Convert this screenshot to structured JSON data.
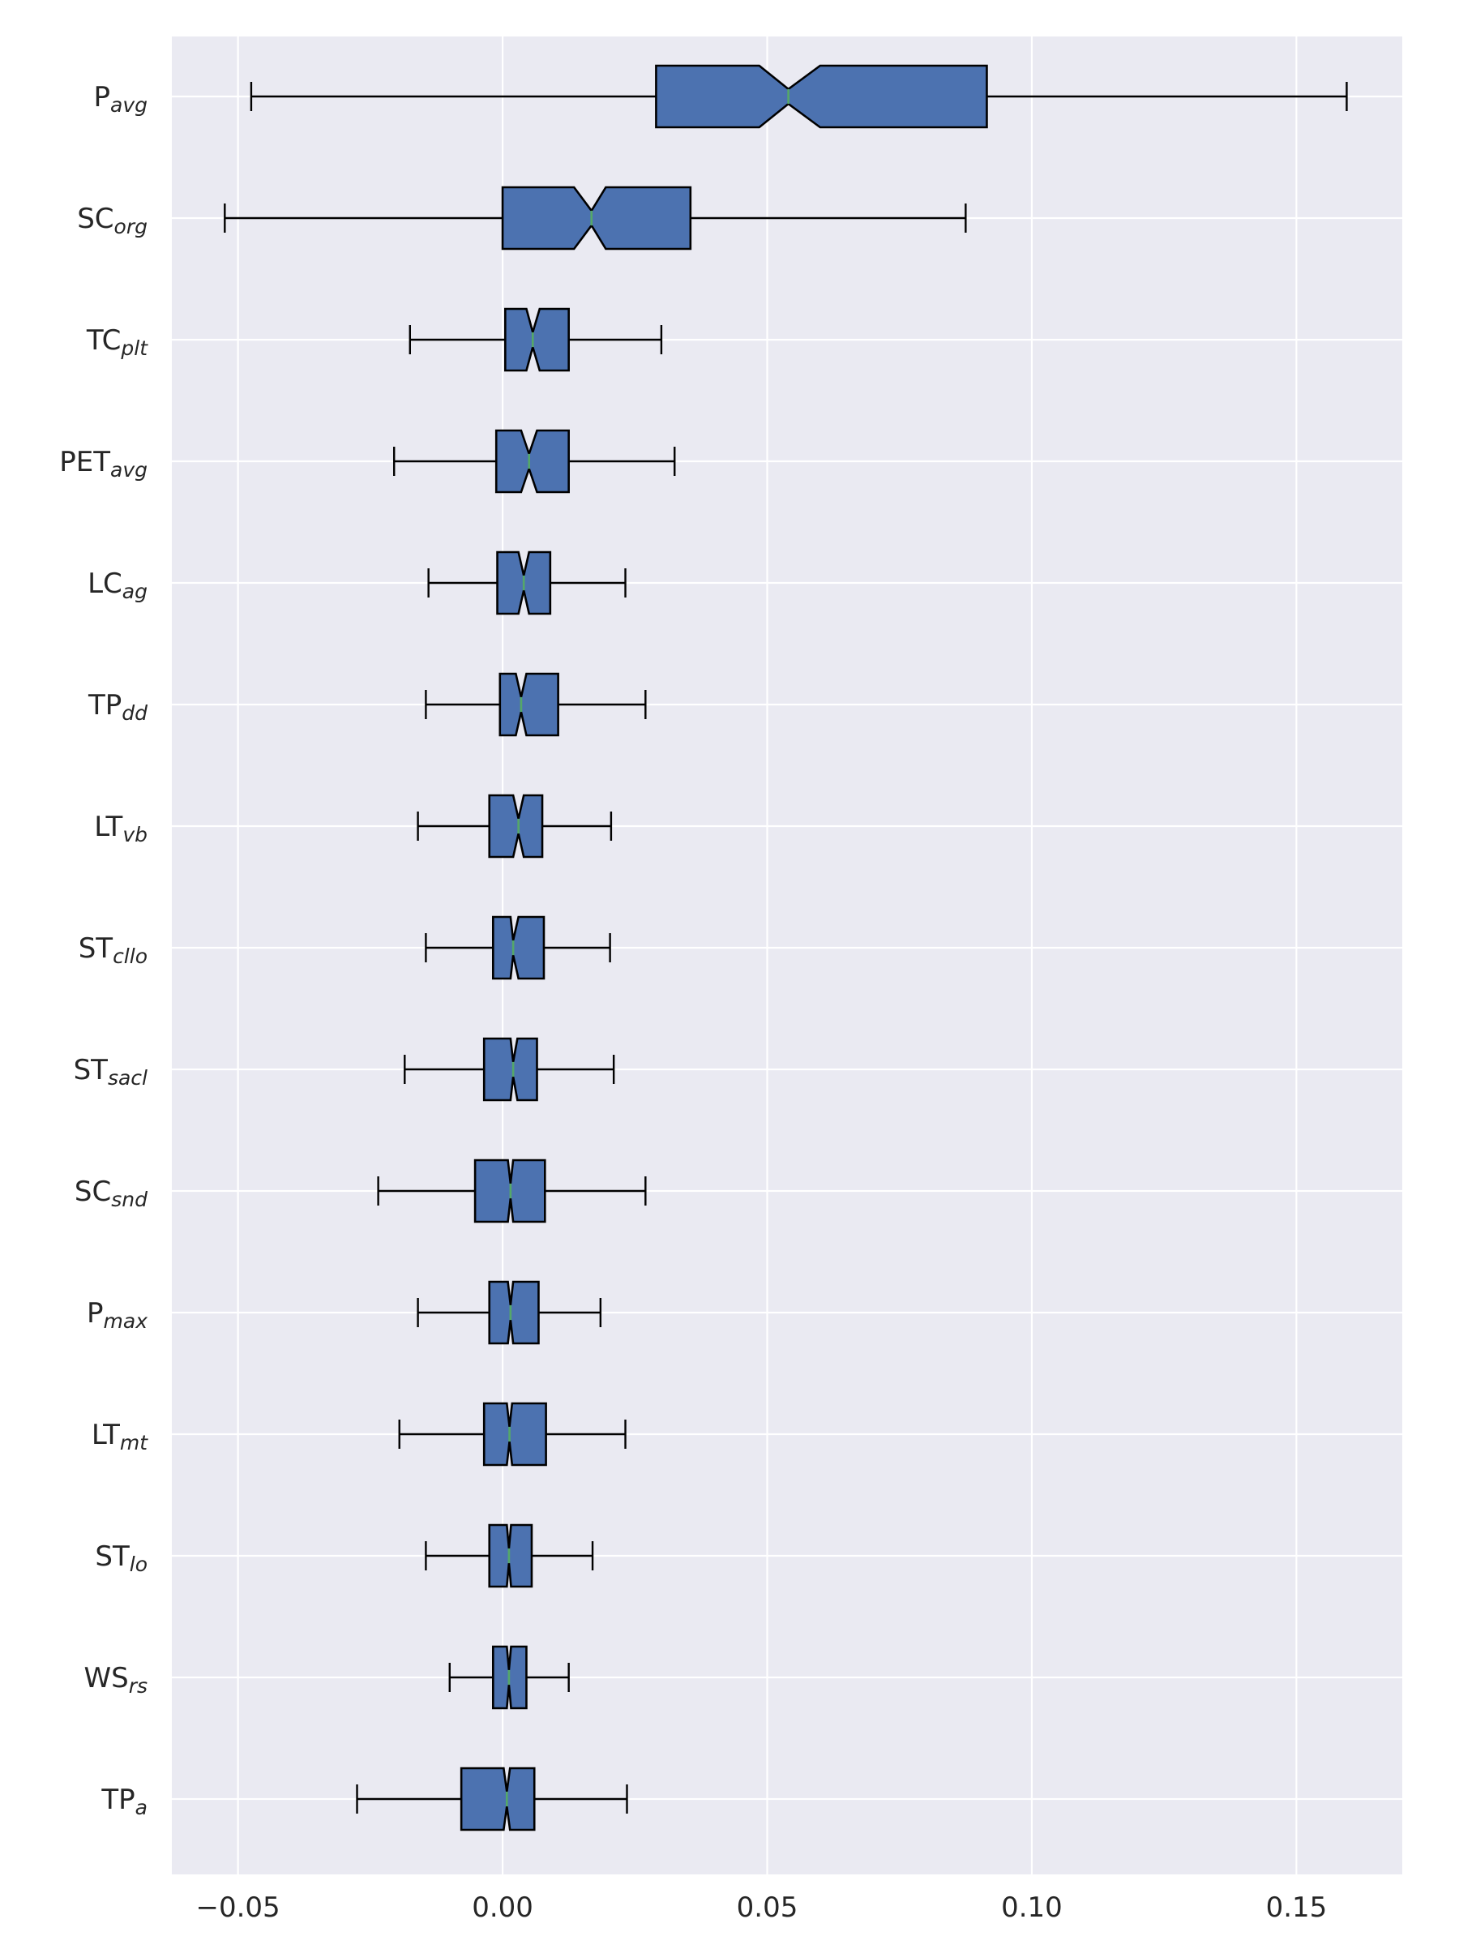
{
  "chart_data": {
    "type": "boxplot",
    "orientation": "horizontal",
    "notched": true,
    "grid": true,
    "legend": "none",
    "xlim": [
      -0.0625,
      0.17
    ],
    "x_ticks": [
      -0.05,
      0.0,
      0.05,
      0.1,
      0.15
    ],
    "x_tick_labels": [
      "−0.05",
      "0.00",
      "0.05",
      "0.10",
      "0.15"
    ],
    "colors": {
      "plot_background": "#EAEAF2",
      "grid": "#FFFFFF",
      "box_fill": "#4C72B0",
      "box_edge": "#000000",
      "median": "#55A868",
      "whisker": "#000000"
    },
    "categories": [
      {
        "base": "P",
        "sub": "avg"
      },
      {
        "base": "SC",
        "sub": "org"
      },
      {
        "base": "TC",
        "sub": "plt"
      },
      {
        "base": "PET",
        "sub": "avg"
      },
      {
        "base": "LC",
        "sub": "ag"
      },
      {
        "base": "TP",
        "sub": "dd"
      },
      {
        "base": "LT",
        "sub": "vb"
      },
      {
        "base": "ST",
        "sub": "cllo"
      },
      {
        "base": "ST",
        "sub": "sacl"
      },
      {
        "base": "SC",
        "sub": "snd"
      },
      {
        "base": "P",
        "sub": "max"
      },
      {
        "base": "LT",
        "sub": "mt"
      },
      {
        "base": "ST",
        "sub": "lo"
      },
      {
        "base": "WS",
        "sub": "rs"
      },
      {
        "base": "TP",
        "sub": "a"
      }
    ],
    "boxes": [
      {
        "whislo": -0.0475,
        "q1": 0.029,
        "notch_lo": 0.0485,
        "med": 0.054,
        "notch_hi": 0.06,
        "q3": 0.0915,
        "whishi": 0.1595
      },
      {
        "whislo": -0.0525,
        "q1": 0.0,
        "notch_lo": 0.0135,
        "med": 0.0168,
        "notch_hi": 0.0195,
        "q3": 0.0355,
        "whishi": 0.0875
      },
      {
        "whislo": -0.0175,
        "q1": 0.0005,
        "notch_lo": 0.0045,
        "med": 0.0057,
        "notch_hi": 0.007,
        "q3": 0.0125,
        "whishi": 0.03
      },
      {
        "whislo": -0.0205,
        "q1": -0.0012,
        "notch_lo": 0.0035,
        "med": 0.005,
        "notch_hi": 0.0065,
        "q3": 0.0125,
        "whishi": 0.0325
      },
      {
        "whislo": -0.014,
        "q1": -0.001,
        "notch_lo": 0.003,
        "med": 0.004,
        "notch_hi": 0.005,
        "q3": 0.009,
        "whishi": 0.0232
      },
      {
        "whislo": -0.0145,
        "q1": -0.0005,
        "notch_lo": 0.0025,
        "med": 0.0035,
        "notch_hi": 0.0045,
        "q3": 0.0105,
        "whishi": 0.027
      },
      {
        "whislo": -0.016,
        "q1": -0.0025,
        "notch_lo": 0.002,
        "med": 0.003,
        "notch_hi": 0.004,
        "q3": 0.0075,
        "whishi": 0.0205
      },
      {
        "whislo": -0.0145,
        "q1": -0.0018,
        "notch_lo": 0.0015,
        "med": 0.002,
        "notch_hi": 0.003,
        "q3": 0.0078,
        "whishi": 0.0203
      },
      {
        "whislo": -0.0185,
        "q1": -0.0035,
        "notch_lo": 0.0015,
        "med": 0.002,
        "notch_hi": 0.0028,
        "q3": 0.0065,
        "whishi": 0.021
      },
      {
        "whislo": -0.0235,
        "q1": -0.0052,
        "notch_lo": 0.001,
        "med": 0.0015,
        "notch_hi": 0.002,
        "q3": 0.008,
        "whishi": 0.027
      },
      {
        "whislo": -0.016,
        "q1": -0.0025,
        "notch_lo": 0.001,
        "med": 0.0015,
        "notch_hi": 0.002,
        "q3": 0.0068,
        "whishi": 0.0185
      },
      {
        "whislo": -0.0195,
        "q1": -0.0035,
        "notch_lo": 0.0008,
        "med": 0.0013,
        "notch_hi": 0.0018,
        "q3": 0.0082,
        "whishi": 0.0232
      },
      {
        "whislo": -0.0145,
        "q1": -0.0025,
        "notch_lo": 0.0008,
        "med": 0.0012,
        "notch_hi": 0.0016,
        "q3": 0.0055,
        "whishi": 0.017
      },
      {
        "whislo": -0.01,
        "q1": -0.0018,
        "notch_lo": 0.0008,
        "med": 0.0012,
        "notch_hi": 0.0016,
        "q3": 0.0045,
        "whishi": 0.0125
      },
      {
        "whislo": -0.0275,
        "q1": -0.0078,
        "notch_lo": 0.0002,
        "med": 0.0008,
        "notch_hi": 0.0014,
        "q3": 0.006,
        "whishi": 0.0235
      }
    ]
  }
}
